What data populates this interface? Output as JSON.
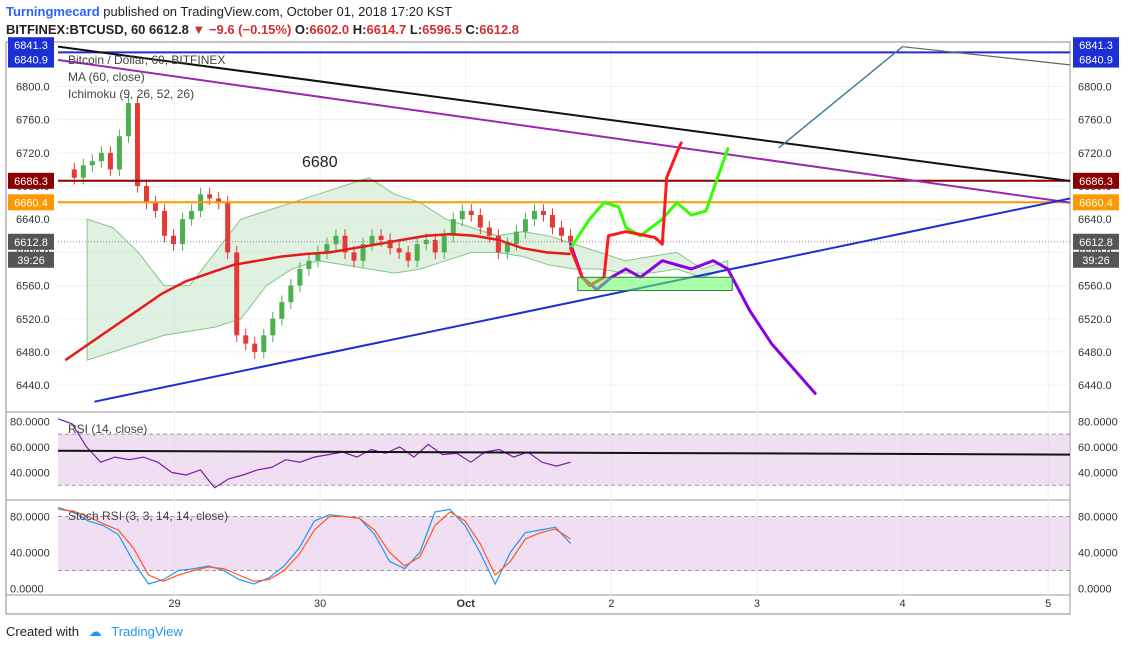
{
  "header": {
    "author": "Turningmecard",
    "published": "published on TradingView.com, October 01, 2018 17:20 KST",
    "symbol": "BITFINEX:BTCUSD, 60",
    "price": "6612.8",
    "change": "▼ −9.6 (−0.15%)",
    "ohlc": [
      {
        "k": "O:",
        "v": "6602.0"
      },
      {
        "k": "H:",
        "v": "6614.7"
      },
      {
        "k": "L:",
        "v": "6596.5"
      },
      {
        "k": "C:",
        "v": "6612.8"
      }
    ]
  },
  "legend": {
    "title": "Bitcoin / Dollar, 60, BITFINEX",
    "ma": "MA (60, close)",
    "ichimoku": "Ichimoku (9, 26, 52, 26)"
  },
  "annotation": "6680",
  "colors": {
    "up": "#4caf50",
    "down": "#e53935",
    "ma": "#e41b1b",
    "blue": "#1a2fd4",
    "purple": "#9c27b0",
    "black": "#111111",
    "orange": "#ff9800",
    "darkred": "#8b0000",
    "drawPurple": "#8c00e6",
    "drawGreen": "#33ff00",
    "drawRed": "#ff1a1a"
  },
  "chart_data": [
    {
      "type": "candlestick",
      "title": "Bitcoin / Dollar, 60, BITFINEX",
      "ylim": [
        6410,
        6850
      ],
      "y_ticks": [
        "6800.0",
        "6760.0",
        "6720.0",
        "6680.0",
        "6640.0",
        "6600.0",
        "6560.0",
        "6520.0",
        "6480.0",
        "6440.0"
      ],
      "x_ticks": [
        {
          "label": "29",
          "day": 29
        },
        {
          "label": "30",
          "day": 30
        },
        {
          "label": "Oct",
          "day": 31
        },
        {
          "label": "2",
          "day": 32
        },
        {
          "label": "3",
          "day": 33
        },
        {
          "label": "4",
          "day": 34
        },
        {
          "label": "5",
          "day": 35
        }
      ],
      "xlim": [
        28.2,
        35.15
      ],
      "price_tags": [
        {
          "value": 6841.3,
          "label": "6841.3",
          "color": "#1a2fd4"
        },
        {
          "value": 6840.9,
          "label": "6840.9",
          "color": "#1a2fd4"
        },
        {
          "value": 6686.3,
          "label": "6686.3",
          "color": "#8b0000"
        },
        {
          "value": 6660.4,
          "label": "6660.4",
          "color": "#ff9800"
        },
        {
          "value": 6612.8,
          "label": "6612.8",
          "color": "#555555"
        }
      ],
      "countdown": "39:26",
      "series": [
        {
          "name": "close",
          "values": [
            6700,
            6690,
            6705,
            6710,
            6720,
            6700,
            6740,
            6780,
            6680,
            6660,
            6650,
            6620,
            6610,
            6640,
            6650,
            6670,
            6665,
            6660,
            6600,
            6500,
            6490,
            6480,
            6500,
            6520,
            6540,
            6560,
            6580,
            6590,
            6600,
            6610,
            6620,
            6600,
            6590,
            6610,
            6620,
            6615,
            6605,
            6600,
            6590,
            6610,
            6615,
            6600,
            6620,
            6640,
            6650,
            6645,
            6630,
            6620,
            6600,
            6610,
            6625,
            6640,
            6650,
            6645,
            6630,
            6620,
            6612.8
          ]
        },
        {
          "name": "MA (60, close)",
          "values": [
            6470,
            6490,
            6510,
            6530,
            6550,
            6565,
            6575,
            6585,
            6590,
            6595,
            6598,
            6600,
            6605,
            6610,
            6615,
            6620,
            6622,
            6620,
            6615,
            6605,
            6600,
            6598
          ]
        }
      ]
    },
    {
      "type": "line",
      "title": "RSI (14, close)",
      "ylim": [
        20,
        85
      ],
      "y_ticks": [
        "80.0000",
        "60.0000",
        "40.0000"
      ],
      "values": [
        82,
        78,
        60,
        48,
        52,
        50,
        52,
        48,
        40,
        38,
        42,
        28,
        35,
        38,
        42,
        44,
        50,
        48,
        52,
        54,
        56,
        52,
        58,
        55,
        60,
        52,
        62,
        54,
        55,
        48,
        56,
        58,
        52,
        56,
        48,
        45,
        48
      ]
    },
    {
      "type": "line",
      "title": "Stoch RSI (3, 3, 14, 14, close)",
      "ylim": [
        -5,
        95
      ],
      "y_ticks": [
        "80.0000",
        "40.0000",
        "0.0000"
      ],
      "series": [
        {
          "name": "K",
          "values": [
            90,
            85,
            75,
            70,
            60,
            30,
            5,
            10,
            20,
            22,
            25,
            20,
            10,
            5,
            12,
            25,
            45,
            75,
            82,
            80,
            78,
            60,
            30,
            22,
            40,
            85,
            88,
            70,
            40,
            5,
            40,
            62,
            65,
            68,
            50
          ]
        },
        {
          "name": "D",
          "values": [
            88,
            86,
            80,
            72,
            65,
            45,
            15,
            8,
            15,
            20,
            24,
            22,
            15,
            8,
            10,
            20,
            38,
            65,
            80,
            80,
            78,
            65,
            40,
            25,
            35,
            70,
            85,
            75,
            50,
            15,
            30,
            55,
            62,
            66,
            55
          ]
        }
      ]
    }
  ],
  "footer": {
    "created": "Created with",
    "brand": "TradingView"
  }
}
